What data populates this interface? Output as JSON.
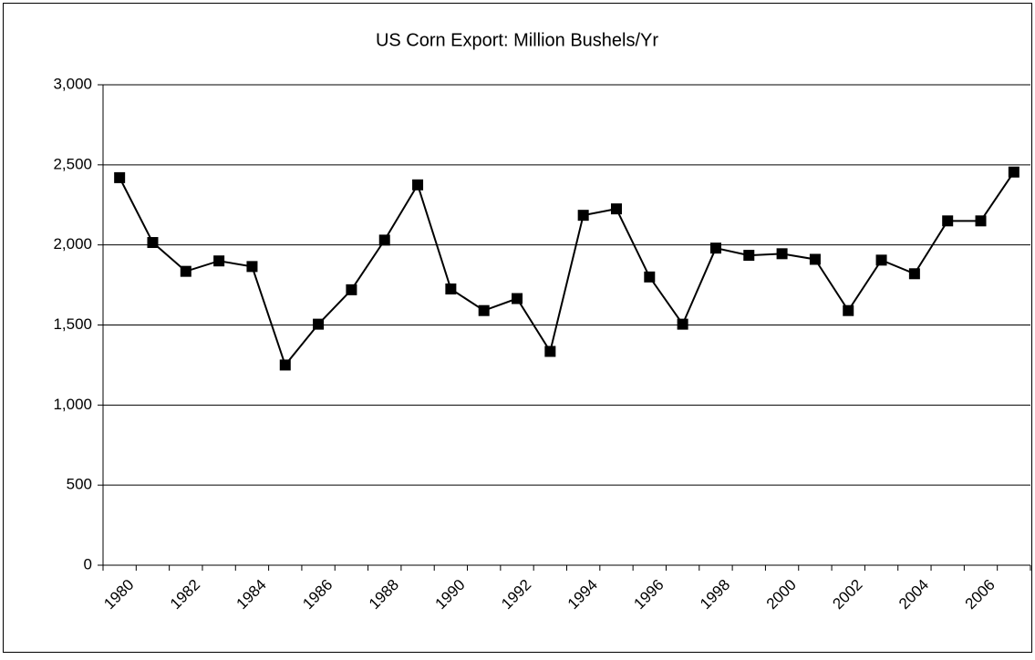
{
  "chart_data": {
    "type": "line",
    "title": "US Corn Export: Million Bushels/Yr",
    "categories": [
      "1980",
      null,
      "1982",
      null,
      "1984",
      null,
      "1986",
      null,
      "1988",
      null,
      "1990",
      null,
      "1992",
      null,
      "1994",
      null,
      "1996",
      null,
      "1998",
      null,
      "2000",
      null,
      "2002",
      null,
      "2004",
      null,
      "2006",
      null
    ],
    "series": [
      {
        "name": "US Corn Export",
        "color": "#000000",
        "values": [
          2420,
          2015,
          1835,
          1900,
          1865,
          1250,
          1505,
          1720,
          2030,
          2375,
          1725,
          1590,
          1665,
          1335,
          2185,
          2225,
          1800,
          1505,
          1980,
          1935,
          1945,
          1910,
          1590,
          1905,
          1820,
          2150,
          2150,
          2455
        ]
      }
    ],
    "ylim": [
      0,
      3000
    ],
    "yticks": [
      0,
      500,
      {
        "value": 1000,
        "label": "1,000"
      },
      {
        "value": 1500,
        "label": "1,500"
      },
      {
        "value": 2000,
        "label": "2,000"
      },
      {
        "value": 2500,
        "label": "2,500"
      },
      {
        "value": 3000,
        "label": "3,000"
      }
    ],
    "grid": true,
    "marker": "square"
  }
}
